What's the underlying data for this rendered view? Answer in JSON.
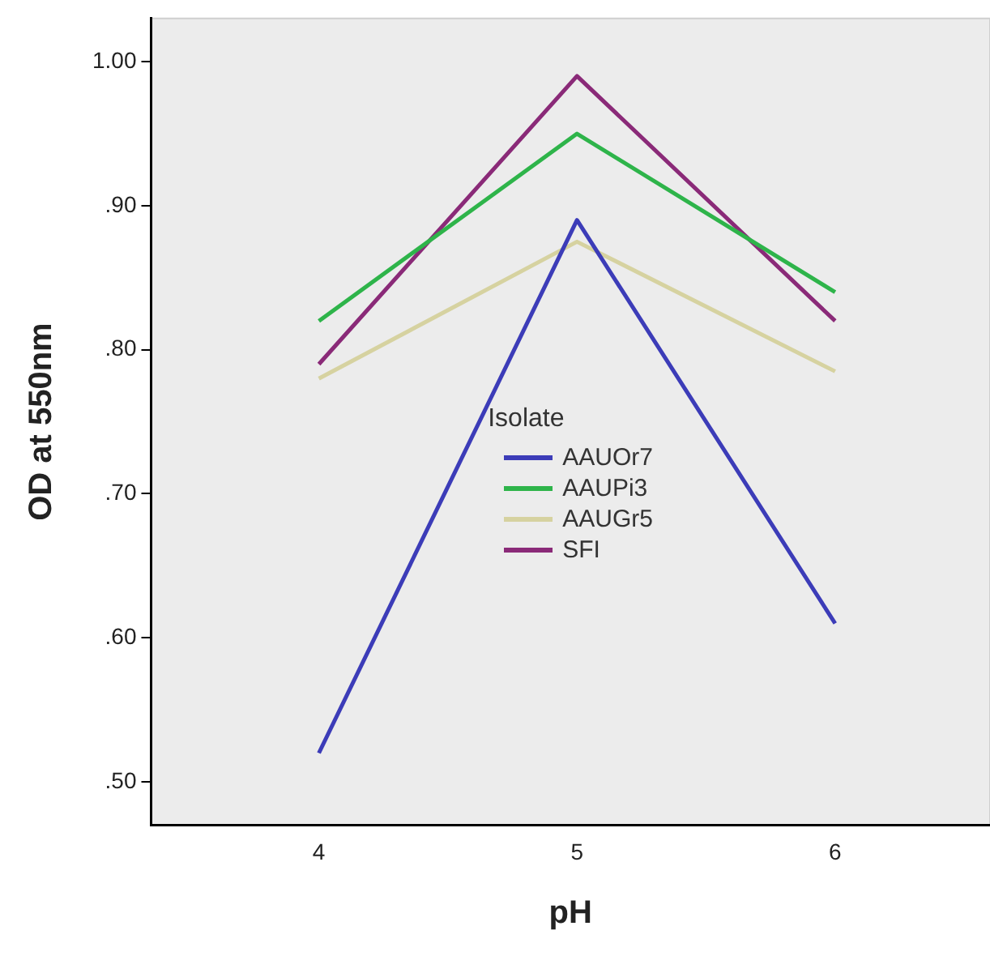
{
  "chart_data": {
    "type": "line",
    "xlabel": "pH",
    "ylabel": "OD at 550nm",
    "legend_title": "Isolate",
    "legend": "center",
    "x": [
      4,
      5,
      6
    ],
    "xlim": [
      3.35,
      6.6
    ],
    "xticks": [
      4,
      5,
      6
    ],
    "ylim": [
      0.47,
      1.03
    ],
    "yticks": [
      {
        "value": 0.5,
        "label": ".50"
      },
      {
        "value": 0.6,
        "label": ".60"
      },
      {
        "value": 0.7,
        "label": ".70"
      },
      {
        "value": 0.8,
        "label": ".80"
      },
      {
        "value": 0.9,
        "label": ".90"
      },
      {
        "value": 1.0,
        "label": "1.00"
      }
    ],
    "grid": false,
    "marker": "none",
    "line_style": "solid",
    "series": [
      {
        "name": "AAUOr7",
        "color": "#3c3cb8",
        "values": [
          0.52,
          0.89,
          0.61
        ]
      },
      {
        "name": "AAUPi3",
        "color": "#2eb44a",
        "values": [
          0.82,
          0.95,
          0.84
        ]
      },
      {
        "name": "AAUGr5",
        "color": "#d6d2a0",
        "values": [
          0.78,
          0.875,
          0.785
        ]
      },
      {
        "name": "SFI",
        "color": "#8a2a78",
        "values": [
          0.79,
          0.99,
          0.82
        ]
      }
    ]
  }
}
